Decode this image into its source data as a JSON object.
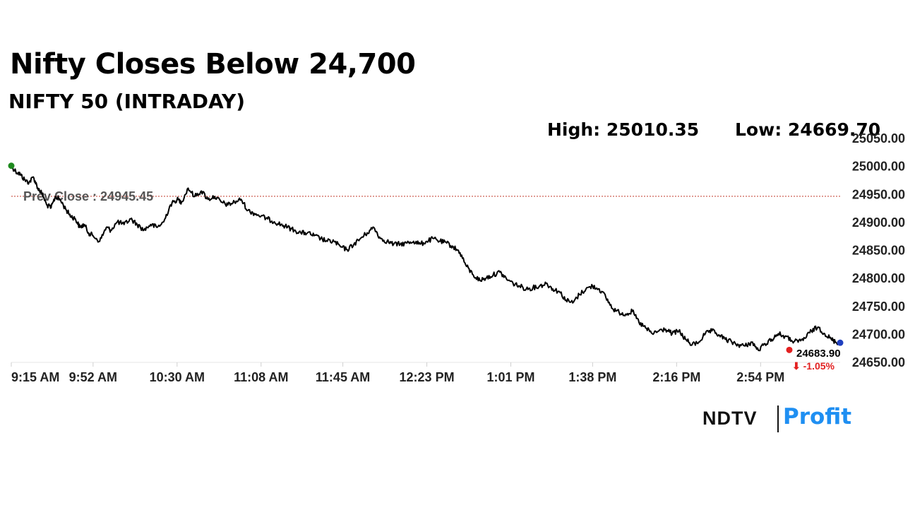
{
  "title": "Nifty Closes Below 24,700",
  "subtitle": "NIFTY 50 (INTRADAY)",
  "stats": {
    "high": "High: 25010.35",
    "low": "Low: 24669.70"
  },
  "brand": {
    "ndtv": "NDTV",
    "profit": "Profit",
    "profit_color": "#1f8ff2"
  },
  "colors": {
    "line": "#000000",
    "prev_close": "#c0392b",
    "start_dot": "#1e8a1e",
    "low_dot": "#e32020",
    "end_dot": "#1f3fbf",
    "change": "#e32020"
  },
  "chart_data": {
    "type": "line",
    "x_ticks": [
      "9:15 AM",
      "9:52 AM",
      "10:30 AM",
      "11:08 AM",
      "11:45 AM",
      "12:23 PM",
      "1:01 PM",
      "1:38 PM",
      "2:16 PM",
      "2:54 PM"
    ],
    "y_ticks": [
      "25050.00",
      "25000.00",
      "24950.00",
      "24900.00",
      "24850.00",
      "24800.00",
      "24750.00",
      "24700.00",
      "24650.00"
    ],
    "ylim": [
      24650,
      25050
    ],
    "xlim": [
      "9:15 AM",
      "3:30 PM"
    ],
    "prev_close": {
      "label": "Prev Close : 24945.45",
      "value": 24945.45
    },
    "last": {
      "value_label": "24683.90",
      "change_label": "⬇ -1.05%",
      "value": 24683.9
    },
    "series": [
      {
        "x": [
          "9:15",
          "9:17",
          "9:19",
          "9:21",
          "9:23",
          "9:25",
          "9:27",
          "9:29",
          "9:31",
          "9:33",
          "9:35",
          "9:37",
          "9:40",
          "9:42",
          "9:44",
          "9:46",
          "9:48",
          "9:50",
          "9:52",
          "9:55",
          "9:58",
          "10:00",
          "10:03",
          "10:06",
          "10:09",
          "10:12",
          "10:15",
          "10:18",
          "10:21",
          "10:24",
          "10:27",
          "10:30",
          "10:32",
          "10:35",
          "10:38",
          "10:41",
          "10:44",
          "10:47",
          "10:50",
          "10:53",
          "10:56",
          "10:59",
          "11:02",
          "11:05",
          "11:08",
          "11:11",
          "11:14",
          "11:17",
          "11:20",
          "11:23",
          "11:26",
          "11:29",
          "11:32",
          "11:35",
          "11:38",
          "11:41",
          "11:44",
          "11:47",
          "11:50",
          "11:53",
          "11:56",
          "11:59",
          "12:02",
          "12:05",
          "12:08",
          "12:11",
          "12:14",
          "12:17",
          "12:20",
          "12:23",
          "12:26",
          "12:29",
          "12:32",
          "12:35",
          "12:38",
          "12:41",
          "12:44",
          "12:47",
          "12:50",
          "12:53",
          "12:56",
          "12:59",
          "13:02",
          "13:05",
          "13:08",
          "13:11",
          "13:14",
          "13:17",
          "13:20",
          "13:23",
          "13:26",
          "13:29",
          "13:32",
          "13:35",
          "13:38",
          "13:41",
          "13:44",
          "13:47",
          "13:50",
          "13:53",
          "13:56",
          "13:59",
          "14:02",
          "14:05",
          "14:08",
          "14:11",
          "14:14",
          "14:17",
          "14:20",
          "14:23",
          "14:26",
          "14:29",
          "14:32",
          "14:35",
          "14:38",
          "14:41",
          "14:44",
          "14:47",
          "14:50",
          "14:53",
          "14:56",
          "14:59",
          "15:02",
          "15:05",
          "15:08",
          "15:11",
          "15:14",
          "15:17",
          "15:20",
          "15:23",
          "15:26",
          "15:28",
          "15:30"
        ],
        "values": [
          25000,
          24990,
          24985,
          24975,
          24970,
          24980,
          24960,
          24950,
          24930,
          24925,
          24945,
          24940,
          24920,
          24910,
          24905,
          24890,
          24895,
          24880,
          24875,
          24865,
          24890,
          24885,
          24900,
          24895,
          24905,
          24895,
          24885,
          24895,
          24890,
          24900,
          24930,
          24940,
          24935,
          24960,
          24945,
          24955,
          24940,
          24945,
          24935,
          24930,
          24935,
          24940,
          24920,
          24915,
          24910,
          24905,
          24900,
          24895,
          24890,
          24885,
          24880,
          24880,
          24875,
          24870,
          24865,
          24865,
          24855,
          24850,
          24860,
          24870,
          24880,
          24890,
          24870,
          24865,
          24860,
          24860,
          24862,
          24865,
          24860,
          24865,
          24870,
          24865,
          24862,
          24855,
          24845,
          24820,
          24805,
          24795,
          24800,
          24805,
          24810,
          24798,
          24790,
          24785,
          24780,
          24782,
          24785,
          24790,
          24780,
          24775,
          24760,
          24755,
          24770,
          24780,
          24785,
          24780,
          24765,
          24745,
          24738,
          24735,
          24740,
          24720,
          24710,
          24700,
          24705,
          24708,
          24700,
          24705,
          24690,
          24680,
          24685,
          24700,
          24705,
          24698,
          24690,
          24685,
          24680,
          24678,
          24685,
          24670,
          24682,
          24690,
          24700,
          24695,
          24688,
          24685,
          24692,
          24705,
          24712,
          24700,
          24690,
          24685,
          24683.9
        ]
      }
    ]
  }
}
